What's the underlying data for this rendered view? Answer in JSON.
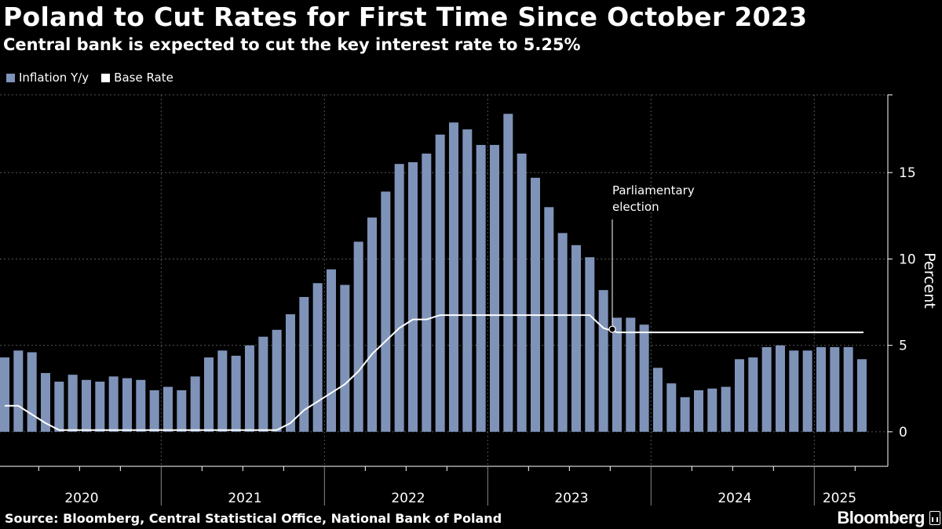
{
  "header": {
    "title": "Poland to Cut Rates for First Time Since October 2023",
    "subtitle": "Central bank is expected to cut the key interest rate to 5.25%"
  },
  "footer": {
    "source": "Source: Bloomberg, Central Statistical Office, National Bank of Poland",
    "logo": "Bloomberg"
  },
  "colors": {
    "background": "#000000",
    "bar": "#7f93b9",
    "line": "#ffffff",
    "grid": "#555555"
  },
  "chart_data": {
    "type": "bar",
    "ylabel": "Percent",
    "ylim": [
      -2,
      19.5
    ],
    "yticks": [
      0,
      5,
      10,
      15
    ],
    "grid": true,
    "legend_position": "top-left",
    "years": [
      "2020",
      "2021",
      "2022",
      "2023",
      "2024",
      "2025"
    ],
    "annotation": {
      "text_lines": [
        "Parliamentary",
        "election"
      ],
      "date": "2023-10"
    },
    "categories": [
      "2020-01",
      "2020-02",
      "2020-03",
      "2020-04",
      "2020-05",
      "2020-06",
      "2020-07",
      "2020-08",
      "2020-09",
      "2020-10",
      "2020-11",
      "2020-12",
      "2021-01",
      "2021-02",
      "2021-03",
      "2021-04",
      "2021-05",
      "2021-06",
      "2021-07",
      "2021-08",
      "2021-09",
      "2021-10",
      "2021-11",
      "2021-12",
      "2022-01",
      "2022-02",
      "2022-03",
      "2022-04",
      "2022-05",
      "2022-06",
      "2022-07",
      "2022-08",
      "2022-09",
      "2022-10",
      "2022-11",
      "2022-12",
      "2023-01",
      "2023-02",
      "2023-03",
      "2023-04",
      "2023-05",
      "2023-06",
      "2023-07",
      "2023-08",
      "2023-09",
      "2023-10",
      "2023-11",
      "2023-12",
      "2024-01",
      "2024-02",
      "2024-03",
      "2024-04",
      "2024-05",
      "2024-06",
      "2024-07",
      "2024-08",
      "2024-09",
      "2024-10",
      "2024-11",
      "2024-12",
      "2025-01",
      "2025-02",
      "2025-03",
      "2025-04"
    ],
    "series": [
      {
        "name": "Inflation Y/y",
        "type": "bar",
        "values": [
          4.3,
          4.7,
          4.6,
          3.4,
          2.9,
          3.3,
          3.0,
          2.9,
          3.2,
          3.1,
          3.0,
          2.4,
          2.6,
          2.4,
          3.2,
          4.3,
          4.7,
          4.4,
          5.0,
          5.5,
          5.9,
          6.8,
          7.8,
          8.6,
          9.4,
          8.5,
          11.0,
          12.4,
          13.9,
          15.5,
          15.6,
          16.1,
          17.2,
          17.9,
          17.5,
          16.6,
          16.6,
          18.4,
          16.1,
          14.7,
          13.0,
          11.5,
          10.8,
          10.1,
          8.2,
          6.6,
          6.6,
          6.2,
          3.7,
          2.8,
          2.0,
          2.4,
          2.5,
          2.6,
          4.2,
          4.3,
          4.9,
          5.0,
          4.7,
          4.7,
          4.9,
          4.9,
          4.9,
          4.2
        ]
      },
      {
        "name": "Base Rate",
        "type": "line",
        "values": [
          1.5,
          1.5,
          1.0,
          0.5,
          0.1,
          0.1,
          0.1,
          0.1,
          0.1,
          0.1,
          0.1,
          0.1,
          0.1,
          0.1,
          0.1,
          0.1,
          0.1,
          0.1,
          0.1,
          0.1,
          0.1,
          0.5,
          1.25,
          1.75,
          2.25,
          2.75,
          3.5,
          4.5,
          5.25,
          6.0,
          6.5,
          6.5,
          6.75,
          6.75,
          6.75,
          6.75,
          6.75,
          6.75,
          6.75,
          6.75,
          6.75,
          6.75,
          6.75,
          6.75,
          6.0,
          5.75,
          5.75,
          5.75,
          5.75,
          5.75,
          5.75,
          5.75,
          5.75,
          5.75,
          5.75,
          5.75,
          5.75,
          5.75,
          5.75,
          5.75,
          5.75,
          5.75,
          5.75,
          5.75
        ]
      }
    ]
  }
}
